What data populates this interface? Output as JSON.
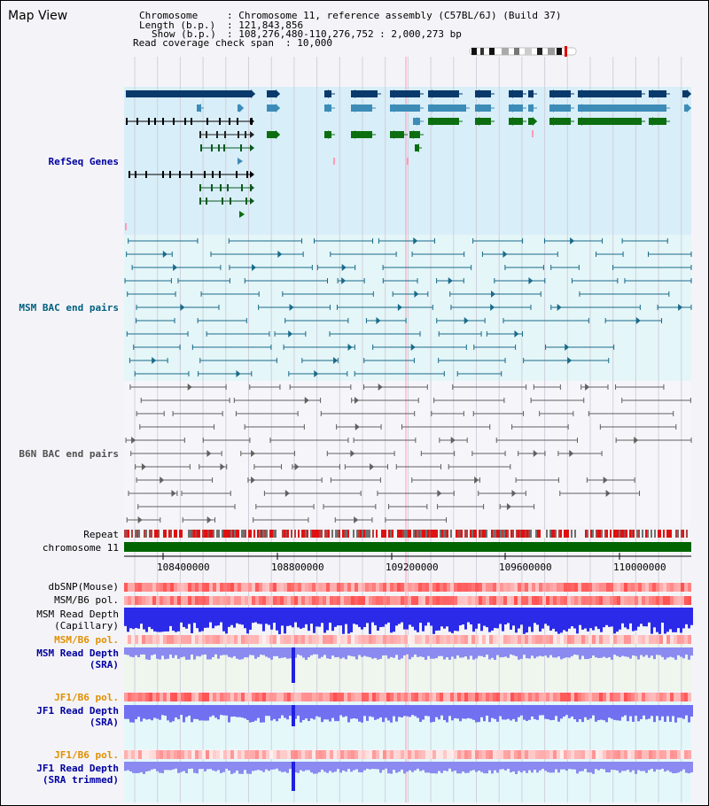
{
  "title": "Map View",
  "info": {
    "chromosome_key": "Chromosome",
    "chromosome_val": ": Chromosome 11, reference assembly (C57BL/6J) (Build 37)",
    "length_key": "Length (b.p.)",
    "length_val": ": 121,843,856",
    "show_key": "Show (b.p.)",
    "show_val": ": 108,276,480-110,276,752 : 2,000,273 bp",
    "coverage_key": "Read coverage check span",
    "coverage_val": ": 10,000"
  },
  "tracks": {
    "refseq": "RefSeq Genes",
    "msm_bac": "MSM BAC end pairs",
    "b6n_bac": "B6N BAC end pairs",
    "repeat": "Repeat",
    "chromosome": "chromosome 11",
    "dbsnp": "dbSNP(Mouse)",
    "msm_b6_pol_1": "MSM/B6 pol.",
    "msm_depth_cap_1": "MSM Read Depth",
    "msm_depth_cap_2": "(Capillary)",
    "msm_b6_pol_2": "MSM/B6 pol.",
    "msm_depth_sra_1": "MSM Read Depth",
    "msm_depth_sra_2": "(SRA)",
    "jf1_b6_pol_1": "JF1/B6 pol.",
    "jf1_depth_sra_1": "JF1 Read Depth",
    "jf1_depth_sra_2": "(SRA)",
    "jf1_b6_pol_2": "JF1/B6 pol.",
    "jf1_depth_trim_1": "JF1 Read Depth",
    "jf1_depth_trim_2": "(SRA trimmed)"
  },
  "axis_ticks": [
    "108400000",
    "108800000",
    "109200000",
    "109600000",
    "110000000"
  ],
  "colors": {
    "refseq_bg": "#d8eef8",
    "msm_bg": "#e4f6f8",
    "gene_navy": "#0a3a6c",
    "gene_blue": "#3d8cb8",
    "gene_green": "#0c6e10",
    "chromosome_green": "#006400",
    "depth_blue": "#2020e0"
  }
}
